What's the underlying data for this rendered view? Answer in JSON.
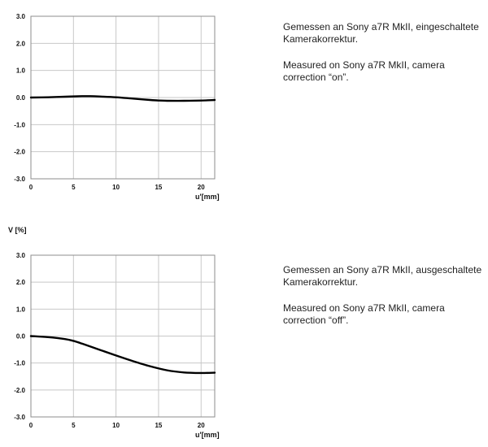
{
  "colors": {
    "grid": "#c8c8c8",
    "frame": "#8c8c8c",
    "curve": "#000000"
  },
  "chart_data": [
    {
      "type": "line",
      "ylabel": "",
      "xlabel": "u'[mm]",
      "xlim": [
        0,
        21.6
      ],
      "ylim": [
        -3.0,
        3.0
      ],
      "xticks": [
        0,
        5,
        10,
        15,
        20
      ],
      "yticks": [
        "3.0",
        "2.0",
        "1.0",
        "0.0",
        "-1.0",
        "-2.0",
        "-3.0"
      ],
      "grid": true,
      "series": [
        {
          "x": [
            0,
            2,
            4,
            6,
            7,
            8,
            10,
            12,
            14,
            15,
            16,
            18,
            20,
            21.6
          ],
          "y": [
            0.0,
            0.01,
            0.03,
            0.05,
            0.05,
            0.04,
            0.01,
            -0.04,
            -0.09,
            -0.11,
            -0.12,
            -0.12,
            -0.11,
            -0.09
          ]
        }
      ]
    },
    {
      "type": "line",
      "ylabel": "V [%]",
      "xlabel": "u'[mm]",
      "xlim": [
        0,
        21.6
      ],
      "ylim": [
        -3.0,
        3.0
      ],
      "xticks": [
        0,
        5,
        10,
        15,
        20
      ],
      "yticks": [
        "3.0",
        "2.0",
        "1.0",
        "0.0",
        "-1.0",
        "-2.0",
        "-3.0"
      ],
      "grid": true,
      "series": [
        {
          "x": [
            0,
            2,
            4,
            5,
            6,
            8,
            10,
            12,
            14,
            16,
            18,
            20,
            21.6
          ],
          "y": [
            0.0,
            -0.04,
            -0.11,
            -0.18,
            -0.28,
            -0.5,
            -0.72,
            -0.93,
            -1.12,
            -1.27,
            -1.35,
            -1.37,
            -1.36
          ]
        }
      ]
    }
  ],
  "notes": [
    {
      "de": "Gemessen an Sony a7R MkII, eingeschaltete Kamerakorrektur.",
      "en": "Measured on Sony a7R MkII, camera correction “on”."
    },
    {
      "de": "Gemessen an Sony a7R MkII, ausgeschaltete Kamerakorrektur.",
      "en": "Measured on Sony a7R MkII, camera correction “off”."
    }
  ]
}
